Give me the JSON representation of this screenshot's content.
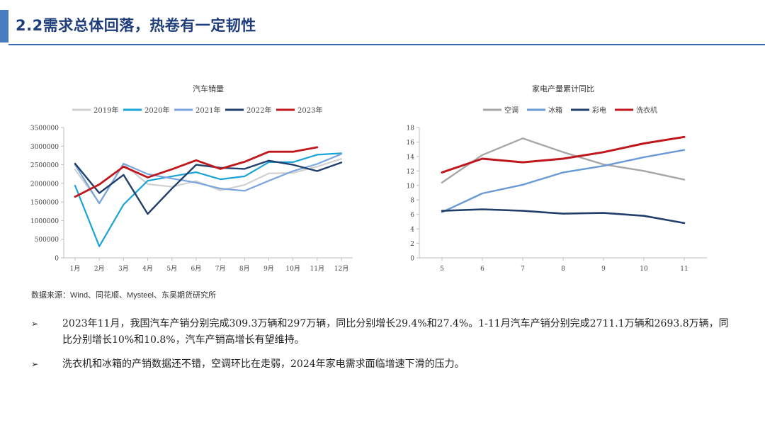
{
  "header": {
    "title": "2.2需求总体回落，热卷有一定韧性"
  },
  "colors": {
    "accent": "#4a7cc0",
    "title": "#1f3d7a",
    "rule": "#3b6db5"
  },
  "source": "数据来源：Wind、同花顺、Mysteel、东吴期货研究所",
  "bullets": [
    {
      "mark": "➢",
      "text": "2023年11月，我国汽车产销分别完成309.3万辆和297万辆，同比分别增长29.4%和27.4%。1-11月汽车产销分别完成2711.1万辆和2693.8万辆，同比分别增长10%和10.8%，汽车产销高增长有望维持。"
    },
    {
      "mark": "➢",
      "text": "洗衣机和冰箱的产销数据还不错，空调环比在走弱，2024年家电需求面临增速下滑的压力。"
    }
  ],
  "chart_data": [
    {
      "type": "line",
      "title": "汽车销量",
      "categories": [
        "1月",
        "2月",
        "3月",
        "4月",
        "5月",
        "6月",
        "7月",
        "8月",
        "9月",
        "10月",
        "11月",
        "12月"
      ],
      "ylim": [
        0,
        3500000
      ],
      "yticks": [
        0,
        500000,
        1000000,
        1500000,
        2000000,
        2500000,
        3000000,
        3500000
      ],
      "legend_position": "top",
      "series": [
        {
          "name": "2019年",
          "color": "#d0d0d0",
          "values": [
            2370000,
            1480000,
            2520000,
            1980000,
            1910000,
            2060000,
            1810000,
            1960000,
            2270000,
            2280000,
            2450000,
            2660000
          ]
        },
        {
          "name": "2020年",
          "color": "#1aa3d6",
          "values": [
            1940000,
            310000,
            1430000,
            2070000,
            2190000,
            2300000,
            2110000,
            2190000,
            2570000,
            2570000,
            2770000,
            2810000
          ]
        },
        {
          "name": "2021年",
          "color": "#7aa5dc",
          "values": [
            2500000,
            1460000,
            2530000,
            2250000,
            2130000,
            2020000,
            1860000,
            1800000,
            2070000,
            2330000,
            2520000,
            2790000
          ]
        },
        {
          "name": "2022年",
          "color": "#203f6b",
          "values": [
            2530000,
            1740000,
            2230000,
            1180000,
            1860000,
            2500000,
            2420000,
            2390000,
            2610000,
            2500000,
            2330000,
            2560000
          ]
        },
        {
          "name": "2023年",
          "color": "#c0171d",
          "values": [
            1640000,
            1970000,
            2450000,
            2160000,
            2380000,
            2620000,
            2390000,
            2580000,
            2850000,
            2850000,
            2970000,
            null
          ]
        }
      ]
    },
    {
      "type": "line",
      "title": "家电产量累计同比",
      "categories": [
        "5",
        "6",
        "7",
        "8",
        "9",
        "10",
        "11"
      ],
      "ylim": [
        0,
        18
      ],
      "yticks": [
        0,
        2,
        4,
        6,
        8,
        10,
        12,
        14,
        16,
        18
      ],
      "legend_position": "top",
      "series": [
        {
          "name": "空调",
          "color": "#a6a6a6",
          "values": [
            10.4,
            14.2,
            16.5,
            14.6,
            12.9,
            12.0,
            10.8
          ]
        },
        {
          "name": "冰箱",
          "color": "#6a9ad6",
          "values": [
            6.3,
            8.9,
            10.1,
            11.8,
            12.7,
            13.9,
            14.9
          ]
        },
        {
          "name": "彩电",
          "color": "#213f6a",
          "values": [
            6.5,
            6.7,
            6.5,
            6.1,
            6.2,
            5.8,
            4.8
          ]
        },
        {
          "name": "洗衣机",
          "color": "#c0171d",
          "values": [
            11.8,
            13.7,
            13.2,
            13.7,
            14.6,
            15.8,
            16.7
          ]
        }
      ]
    }
  ]
}
